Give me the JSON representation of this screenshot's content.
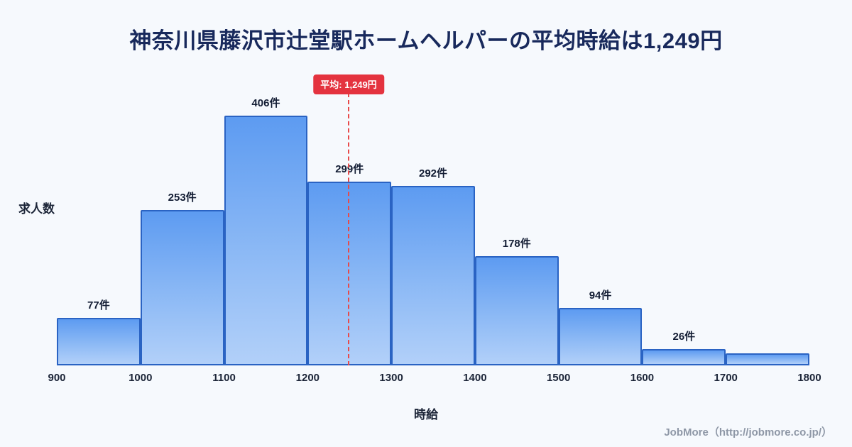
{
  "title": "神奈川県藤沢市辻堂駅ホームヘルパーの平均時給は1,249円",
  "footer": {
    "attribution": "JobMore（http://jobmore.co.jp/）"
  },
  "chart_data": {
    "type": "bar",
    "title": "神奈川県藤沢市辻堂駅ホームヘルパーの平均時給は1,249円",
    "xlabel": "時給",
    "ylabel": "求人数",
    "bin_edges": [
      900,
      1000,
      1100,
      1200,
      1300,
      1400,
      1500,
      1600,
      1700,
      1800
    ],
    "values": [
      77,
      253,
      406,
      299,
      292,
      178,
      94,
      26,
      20
    ],
    "bar_labels": [
      "77件",
      "253件",
      "406件",
      "299件",
      "292件",
      "178件",
      "94件",
      "26件",
      ""
    ],
    "unit_suffix": "件",
    "average": 1249,
    "average_label": "平均: 1,249円",
    "xlim": [
      900,
      1800
    ],
    "ylim": [
      0,
      450
    ],
    "grid": false,
    "legend": "none",
    "colors": {
      "bar_fill_top": "#5d9bf1",
      "bar_fill_bottom": "#b2d0f9",
      "bar_border": "#2a63c3",
      "average_line": "#e84a4a",
      "badge_background": "#e4333f",
      "badge_text": "#ffffff",
      "title_text": "#18295c",
      "background": "#f6f9fd"
    }
  }
}
